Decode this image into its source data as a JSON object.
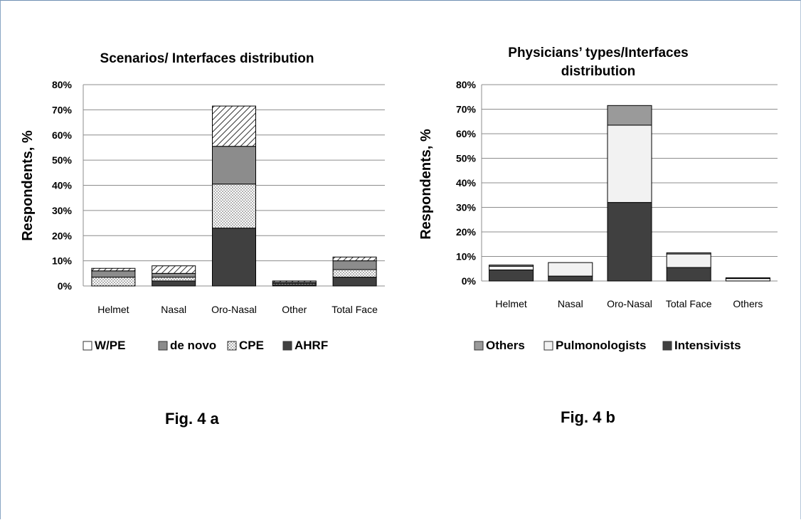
{
  "colors": {
    "W/PE": "#ffffff",
    "de novo": "#8c8c8c",
    "CPE": "dots",
    "AHRF": "#404040",
    "Others": "#9a9a9a",
    "Pulmonologists": "#f2f2f2",
    "Intensivists": "#404040",
    "frame": "#6f8fb3"
  },
  "figures": {
    "a_caption": "Fig. 4 a",
    "b_caption": "Fig. 4 b"
  },
  "chart_data": [
    {
      "type": "bar",
      "stacked": true,
      "title": "Scenarios/ Interfaces distribution",
      "xlabel": "",
      "ylabel": "Respondents, %",
      "ylim": [
        0,
        80
      ],
      "yticks": [
        "0%",
        "10%",
        "20%",
        "30%",
        "40%",
        "50%",
        "60%",
        "70%",
        "80%"
      ],
      "grid": true,
      "legend_position": "bottom",
      "categories": [
        "Helmet",
        "Nasal",
        "Oro-Nasal",
        "Other",
        "Total Face"
      ],
      "series": [
        {
          "name": "AHRF",
          "values": [
            0,
            2,
            23,
            0.5,
            3.5
          ]
        },
        {
          "name": "CPE",
          "values": [
            3.5,
            1.5,
            17.5,
            0.5,
            3
          ]
        },
        {
          "name": "de novo",
          "values": [
            2.5,
            1.5,
            15,
            0.5,
            3.5
          ]
        },
        {
          "name": "W/PE",
          "values": [
            1,
            3,
            16,
            0.5,
            1.5
          ]
        }
      ],
      "legend_order": [
        "W/PE",
        "de novo",
        "CPE",
        "AHRF"
      ]
    },
    {
      "type": "bar",
      "stacked": true,
      "title": "Physicians’ types/Interfaces distribution",
      "title_lines": [
        "Physicians’ types/Interfaces",
        "distribution"
      ],
      "xlabel": "",
      "ylabel": "Respondents, %",
      "ylim": [
        0,
        80
      ],
      "yticks": [
        "0%",
        "10%",
        "20%",
        "30%",
        "40%",
        "50%",
        "60%",
        "70%",
        "80%"
      ],
      "grid": true,
      "legend_position": "bottom",
      "categories": [
        "Helmet",
        "Nasal",
        "Oro-Nasal",
        "Total Face",
        "Others"
      ],
      "series": [
        {
          "name": "Intensivists",
          "values": [
            4.5,
            2,
            32,
            5.5,
            0
          ]
        },
        {
          "name": "Pulmonologists",
          "values": [
            1.5,
            5.5,
            31.5,
            5.5,
            1
          ]
        },
        {
          "name": "Others",
          "values": [
            0.5,
            0,
            8,
            0.5,
            0.3
          ]
        }
      ],
      "legend_order": [
        "Others",
        "Pulmonologists",
        "Intensivists"
      ]
    }
  ]
}
